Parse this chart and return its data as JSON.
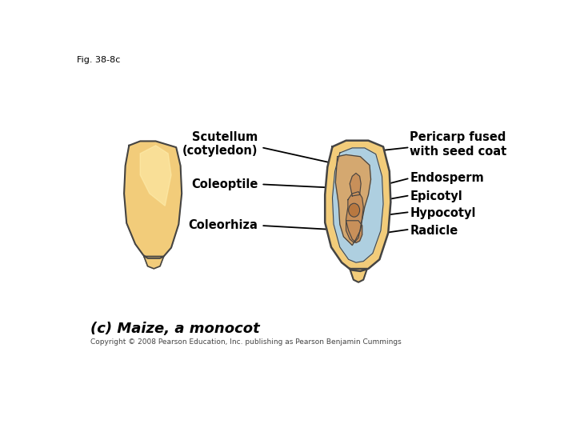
{
  "fig_label": "Fig. 38-8c",
  "caption": "(c) Maize, a monocot",
  "copyright": "Copyright © 2008 Pearson Education, Inc. publishing as Pearson Benjamin Cummings",
  "bg_color": "#ffffff",
  "labels": {
    "scutellum": "Scutellum\n(cotyledon)",
    "pericarp": "Pericarp fused\nwith seed coat",
    "coleoptile": "Coleoptile",
    "endosperm": "Endosperm",
    "epicotyl": "Epicotyl",
    "hypocotyl": "Hypocotyl",
    "coleorhiza": "Coleorhiza",
    "radicle": "Radicle"
  },
  "colors": {
    "outer_pericarp": "#F2CC7A",
    "pericarp_inner": "#EEC870",
    "endosperm_fill": "#AECFE0",
    "scutellum_fill": "#D4A870",
    "embryo_fill": "#C8905A",
    "embryo_dark": "#B87840",
    "outline": "#444444",
    "label_line": "#000000",
    "highlight": "#FFF0B0"
  }
}
